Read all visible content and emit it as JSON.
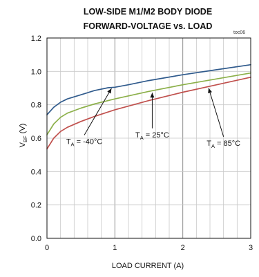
{
  "chart_data": {
    "type": "line",
    "title_line1": "LOW-SIDE M1/M2 BODY DIODE",
    "title_line2": "FORWARD-VOLTAGE vs. LOAD",
    "code": "toc06",
    "xlabel": "LOAD CURRENT (A)",
    "ylabel_main": "V",
    "ylabel_sub": "BF",
    "ylabel_unit": " (V)",
    "xlim": [
      0,
      3
    ],
    "ylim": [
      0,
      1.2
    ],
    "x_ticks": [
      0,
      1,
      2,
      3
    ],
    "x_tick_labels": [
      "0",
      "1",
      "2",
      "3"
    ],
    "y_ticks": [
      0,
      0.2,
      0.4,
      0.6,
      0.8,
      1.0,
      1.2
    ],
    "y_tick_labels": [
      "0.0",
      "0.2",
      "0.4",
      "0.6",
      "0.8",
      "1.0",
      "1.2"
    ],
    "grid_x_minor_step": 0.2,
    "grid_y_step": 0.2,
    "series": [
      {
        "color": "#2f5a8c",
        "x": [
          0,
          0.1,
          0.2,
          0.3,
          0.5,
          0.7,
          0.9,
          1.0,
          1.2,
          1.5,
          2.0,
          2.5,
          3.0
        ],
        "y": [
          0.74,
          0.785,
          0.815,
          0.835,
          0.86,
          0.885,
          0.902,
          0.905,
          0.92,
          0.945,
          0.98,
          1.01,
          1.04
        ]
      },
      {
        "color": "#8cb04a",
        "x": [
          0,
          0.1,
          0.2,
          0.3,
          0.5,
          0.7,
          1.0,
          1.5,
          2.0,
          2.5,
          3.0
        ],
        "y": [
          0.62,
          0.685,
          0.725,
          0.75,
          0.78,
          0.805,
          0.835,
          0.88,
          0.92,
          0.955,
          0.99
        ]
      },
      {
        "color": "#c0504d",
        "x": [
          0,
          0.1,
          0.2,
          0.3,
          0.5,
          0.7,
          1.0,
          1.5,
          2.0,
          2.5,
          3.0
        ],
        "y": [
          0.535,
          0.6,
          0.64,
          0.665,
          0.7,
          0.73,
          0.77,
          0.825,
          0.875,
          0.92,
          0.965
        ]
      }
    ],
    "annotations": [
      {
        "main": "T",
        "sub": "A",
        "rest": " = -40°C",
        "label_x": 0.55,
        "label_y": 0.565,
        "arrow_to": [
          0.95,
          0.898
        ]
      },
      {
        "main": "T",
        "sub": "A",
        "rest": " = 25°C",
        "label_x": 1.55,
        "label_y": 0.605,
        "arrow_to": [
          1.55,
          0.872
        ]
      },
      {
        "main": "T",
        "sub": "A",
        "rest": " = 85°C",
        "label_x": 2.6,
        "label_y": 0.555,
        "arrow_to": [
          2.38,
          0.9
        ]
      }
    ]
  }
}
